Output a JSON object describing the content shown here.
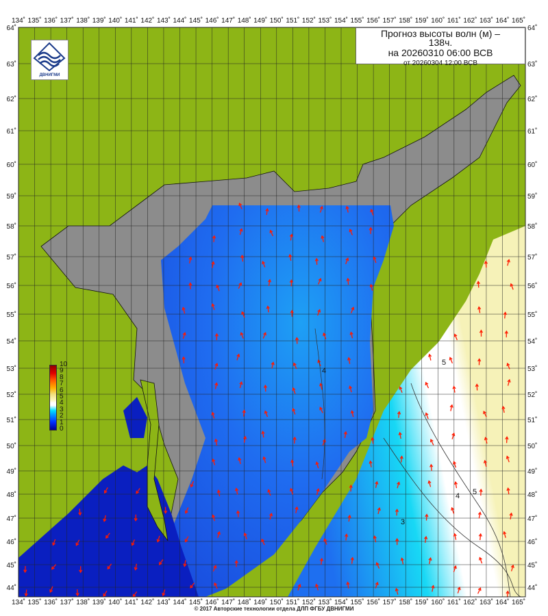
{
  "title": {
    "line1": "Прогноз высоты волн (м) –",
    "line2": "138ч.",
    "line3": "на 20260310 06:00 ВСВ",
    "line4": "от 20260304 12:00 ВСВ"
  },
  "logo": {
    "text": "ДВНИГМИ"
  },
  "copyright": "© 2017 Авторские технологии отдела ДЛП ФГБУ ДВНИГМИ",
  "axes": {
    "longitudes": [
      "134˚",
      "135˚",
      "136˚",
      "137˚",
      "138˚",
      "139˚",
      "140˚",
      "141˚",
      "142˚",
      "143˚",
      "144˚",
      "145˚",
      "146˚",
      "147˚",
      "148˚",
      "149˚",
      "150˚",
      "151˚",
      "152˚",
      "153˚",
      "154˚",
      "155˚",
      "156˚",
      "157˚",
      "158˚",
      "159˚",
      "160˚",
      "161˚",
      "162˚",
      "163˚",
      "164˚",
      "165˚"
    ],
    "latitudes": [
      "64˚",
      "63˚",
      "62˚",
      "61˚",
      "60˚",
      "59˚",
      "58˚",
      "57˚",
      "56˚",
      "55˚",
      "54˚",
      "53˚",
      "52˚",
      "51˚",
      "50˚",
      "49˚",
      "48˚",
      "47˚",
      "46˚",
      "45˚",
      "44˚"
    ]
  },
  "legend": {
    "labels": [
      "10",
      "9",
      "8",
      "7",
      "6",
      "5",
      "4",
      "3",
      "2",
      "1",
      "0"
    ],
    "unit": "м"
  },
  "contour_labels": [
    "4",
    "3",
    "4",
    "5",
    "5"
  ],
  "colors": {
    "land": "#8db516",
    "masked_sea": "#8c8c8c",
    "sea_low": "#0a1fc0",
    "sea_mid": "#1f7af5",
    "sea_cyan": "#18d8f5",
    "sea_high": "#f6f2b8",
    "arrow": "#ff1a00"
  }
}
